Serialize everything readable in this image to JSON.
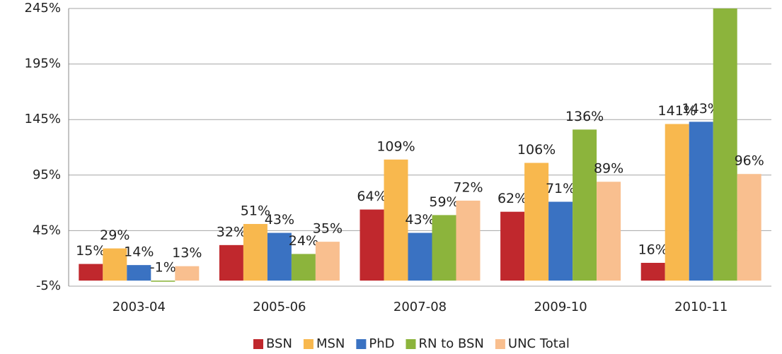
{
  "chart_data": {
    "type": "bar",
    "categories": [
      "2003-04",
      "2005-06",
      "2007-08",
      "2009-10",
      "2010-11"
    ],
    "series": [
      {
        "name": "BSN",
        "color": "#c0282d",
        "values": [
          15,
          32,
          64,
          62,
          16
        ],
        "value_labels": [
          "15%",
          "32%",
          "64%",
          "62%",
          "16%"
        ]
      },
      {
        "name": "MSN",
        "color": "#f8b84e",
        "values": [
          29,
          51,
          109,
          106,
          141
        ],
        "value_labels": [
          "29%",
          "51%",
          "109%",
          "106%",
          "141%"
        ]
      },
      {
        "name": "PhD",
        "color": "#3a72c2",
        "values": [
          14,
          43,
          43,
          71,
          143
        ],
        "value_labels": [
          "14%",
          "43%",
          "43%",
          "71%",
          "143%"
        ]
      },
      {
        "name": "RN to BSN",
        "color": "#8cb43c",
        "values": [
          -1,
          24,
          59,
          136,
          245
        ],
        "value_labels": [
          "-1%",
          "24%",
          "59%",
          "136%",
          null
        ]
      },
      {
        "name": "UNC Total",
        "color": "#f9bf8f",
        "values": [
          13,
          35,
          72,
          89,
          96
        ],
        "value_labels": [
          "13%",
          "35%",
          "72%",
          "89%",
          "96%"
        ]
      }
    ],
    "ylim": [
      -5,
      245
    ],
    "yticks": [
      {
        "value": -5,
        "label": "-5%"
      },
      {
        "value": 45,
        "label": "45%"
      },
      {
        "value": 95,
        "label": "95%"
      },
      {
        "value": 145,
        "label": "145%"
      },
      {
        "value": 195,
        "label": "195%"
      },
      {
        "value": 245,
        "label": "245%"
      }
    ],
    "grid": true,
    "legend": "bottom"
  }
}
